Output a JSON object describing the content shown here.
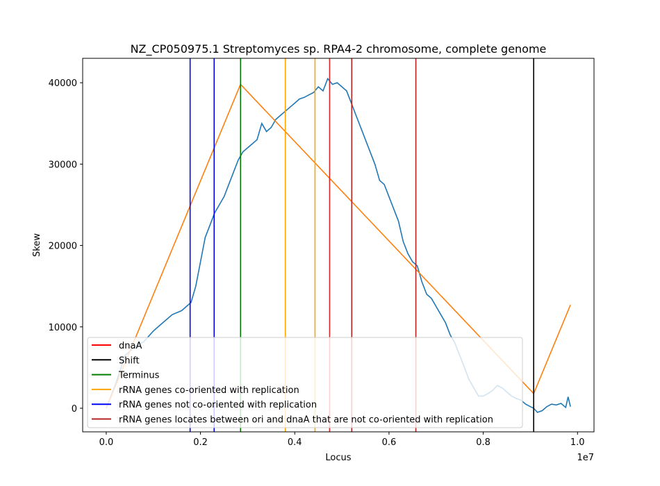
{
  "chart_data": {
    "type": "line",
    "title": "NZ_CP050975.1 Streptomyces sp. RPA4-2 chromosome, complete genome",
    "xlabel": "Locus",
    "ylabel": "Skew",
    "x_offset_label": "1e7",
    "xlim": [
      -500000,
      10350000
    ],
    "ylim": [
      -2900,
      43000
    ],
    "x_ticks": [
      0,
      2000000,
      4000000,
      6000000,
      8000000,
      10000000
    ],
    "x_tick_labels": [
      "0.0",
      "0.2",
      "0.4",
      "0.6",
      "0.8",
      "1.0"
    ],
    "y_ticks": [
      0,
      10000,
      20000,
      30000,
      40000
    ],
    "y_tick_labels": [
      "0",
      "10000",
      "20000",
      "30000",
      "40000"
    ],
    "grid": false,
    "legend_position": "lower-left",
    "series": [
      {
        "color": "#1f77b4",
        "x": [
          0,
          200000,
          400000,
          600000,
          800000,
          1000000,
          1200000,
          1400000,
          1600000,
          1700000,
          1800000,
          1900000,
          2000000,
          2100000,
          2200000,
          2300000,
          2400000,
          2500000,
          2600000,
          2700000,
          2800000,
          2900000,
          3000000,
          3100000,
          3200000,
          3300000,
          3400000,
          3500000,
          3600000,
          3700000,
          3800000,
          3900000,
          4000000,
          4100000,
          4200000,
          4300000,
          4400000,
          4500000,
          4600000,
          4700000,
          4800000,
          4900000,
          5000000,
          5100000,
          5200000,
          5300000,
          5400000,
          5500000,
          5600000,
          5700000,
          5800000,
          5900000,
          6000000,
          6100000,
          6200000,
          6300000,
          6400000,
          6500000,
          6600000,
          6700000,
          6800000,
          6900000,
          7000000,
          7100000,
          7200000,
          7300000,
          7400000,
          7500000,
          7600000,
          7700000,
          7800000,
          7900000,
          8000000,
          8100000,
          8200000,
          8300000,
          8400000,
          8500000,
          8600000,
          8700000,
          8800000,
          8900000,
          9000000,
          9070000,
          9150000,
          9250000,
          9350000,
          9450000,
          9550000,
          9650000,
          9750000,
          9800000,
          9850000
        ],
        "y": [
          0,
          3000,
          6500,
          7500,
          8200,
          9500,
          10500,
          11500,
          12000,
          12500,
          13000,
          15000,
          18000,
          21000,
          22500,
          24000,
          25000,
          26000,
          27500,
          29000,
          30500,
          31500,
          32000,
          32500,
          33000,
          35000,
          34000,
          34500,
          35500,
          36000,
          36500,
          37000,
          37500,
          38000,
          38200,
          38500,
          38800,
          39500,
          39000,
          40500,
          39800,
          40000,
          39500,
          39000,
          37500,
          36000,
          34500,
          33000,
          31500,
          30000,
          28000,
          27500,
          26000,
          24500,
          23000,
          20500,
          19000,
          18000,
          17500,
          15500,
          14000,
          13500,
          12500,
          11500,
          10500,
          9000,
          8000,
          6500,
          5000,
          3500,
          2500,
          1500,
          1500,
          1800,
          2200,
          2800,
          2500,
          2000,
          1500,
          1200,
          1000,
          500,
          200,
          0,
          -500,
          -300,
          200,
          500,
          400,
          600,
          100,
          1400,
          200
        ]
      },
      {
        "color": "#ff7f0e",
        "x": [
          0,
          2850000,
          9070000,
          9850000
        ],
        "y": [
          0,
          39800,
          1800,
          12700
        ]
      }
    ],
    "vlines": [
      {
        "x": 1780000,
        "color": "#0000ff"
      },
      {
        "x": 2290000,
        "color": "#0000ff"
      },
      {
        "x": 2850000,
        "color": "#008000"
      },
      {
        "x": 3800000,
        "color": "#ffa500"
      },
      {
        "x": 4430000,
        "color": "#ffa500"
      },
      {
        "x": 4740000,
        "color": "#d62728"
      },
      {
        "x": 5210000,
        "color": "#b22222"
      },
      {
        "x": 6570000,
        "color": "#b22222"
      },
      {
        "x": 9070000,
        "color": "#000000"
      }
    ],
    "legend": [
      {
        "label": "dnaA",
        "color": "#ff0000"
      },
      {
        "label": "Shift",
        "color": "#000000"
      },
      {
        "label": "Terminus",
        "color": "#008000"
      },
      {
        "label": "rRNA genes co-oriented with replication",
        "color": "#ffa500"
      },
      {
        "label": "rRNA genes not co-oriented with replication",
        "color": "#0000ff"
      },
      {
        "label": "rRNA genes locates between ori and dnaA that are not co-oriented with replication",
        "color": "#b22222"
      }
    ]
  }
}
